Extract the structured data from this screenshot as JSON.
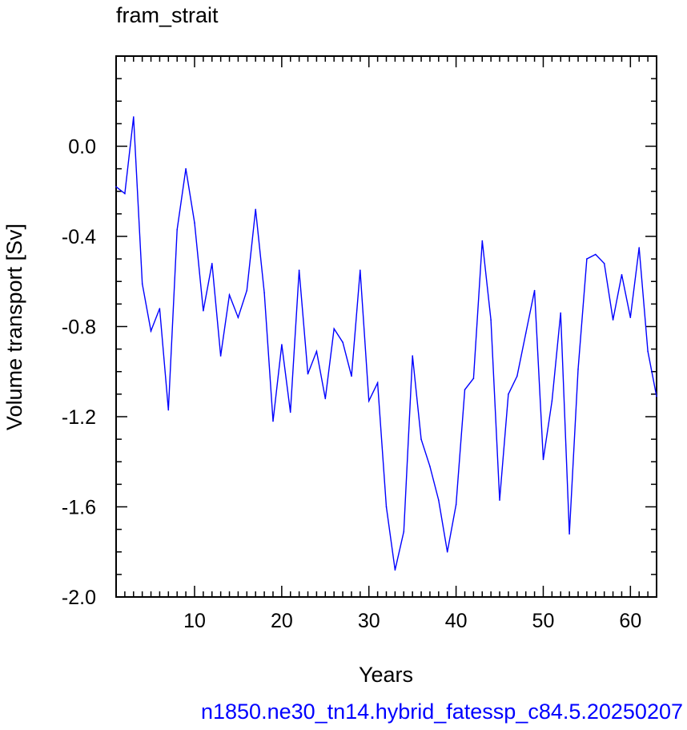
{
  "chart_data": {
    "type": "line",
    "title": "fram_strait",
    "xlabel": "Years",
    "ylabel": "Volume transport [Sv]",
    "caption": "n1850.ne30_tn14.hybrid_fatessp_c84.5.20250207",
    "xlim": [
      1,
      63
    ],
    "ylim": [
      -2.0,
      0.4
    ],
    "x_ticks": [
      10,
      20,
      30,
      40,
      50,
      60
    ],
    "x_tick_labels": [
      "10",
      "20",
      "30",
      "40",
      "50",
      "60"
    ],
    "y_ticks": [
      0.0,
      -0.4,
      -0.8,
      -1.2,
      -1.6,
      -2.0
    ],
    "y_tick_labels": [
      "0.0",
      "-0.4",
      "-0.8",
      "-1.2",
      "-1.6",
      "-2.0"
    ],
    "grid": false,
    "series": [
      {
        "color": "#0000ff",
        "x": [
          1,
          2,
          3,
          4,
          5,
          6,
          7,
          8,
          9,
          10,
          11,
          12,
          13,
          14,
          15,
          16,
          17,
          18,
          19,
          20,
          21,
          22,
          23,
          24,
          25,
          26,
          27,
          28,
          29,
          30,
          31,
          32,
          33,
          34,
          35,
          36,
          37,
          38,
          39,
          40,
          41,
          42,
          43,
          44,
          45,
          46,
          47,
          48,
          49,
          50,
          51,
          52,
          53,
          54,
          55,
          56,
          57,
          58,
          59,
          60,
          61,
          62,
          63
        ],
        "y": [
          -0.18,
          -0.21,
          0.13,
          -0.61,
          -0.82,
          -0.72,
          -1.17,
          -0.37,
          -0.1,
          -0.34,
          -0.73,
          -0.52,
          -0.93,
          -0.66,
          -0.76,
          -0.64,
          -0.28,
          -0.65,
          -1.22,
          -0.88,
          -1.18,
          -0.55,
          -1.01,
          -0.91,
          -1.12,
          -0.81,
          -0.87,
          -1.02,
          -0.55,
          -1.13,
          -1.05,
          -1.6,
          -1.88,
          -1.71,
          -0.93,
          -1.3,
          -1.42,
          -1.57,
          -1.8,
          -1.59,
          -1.08,
          -1.03,
          -0.42,
          -0.77,
          -1.57,
          -1.1,
          -1.02,
          -0.83,
          -0.64,
          -1.39,
          -1.13,
          -0.74,
          -1.72,
          -0.99,
          -0.5,
          -0.48,
          -0.52,
          -0.77,
          -0.57,
          -0.76,
          -0.45,
          -0.91,
          -1.11
        ]
      }
    ]
  }
}
